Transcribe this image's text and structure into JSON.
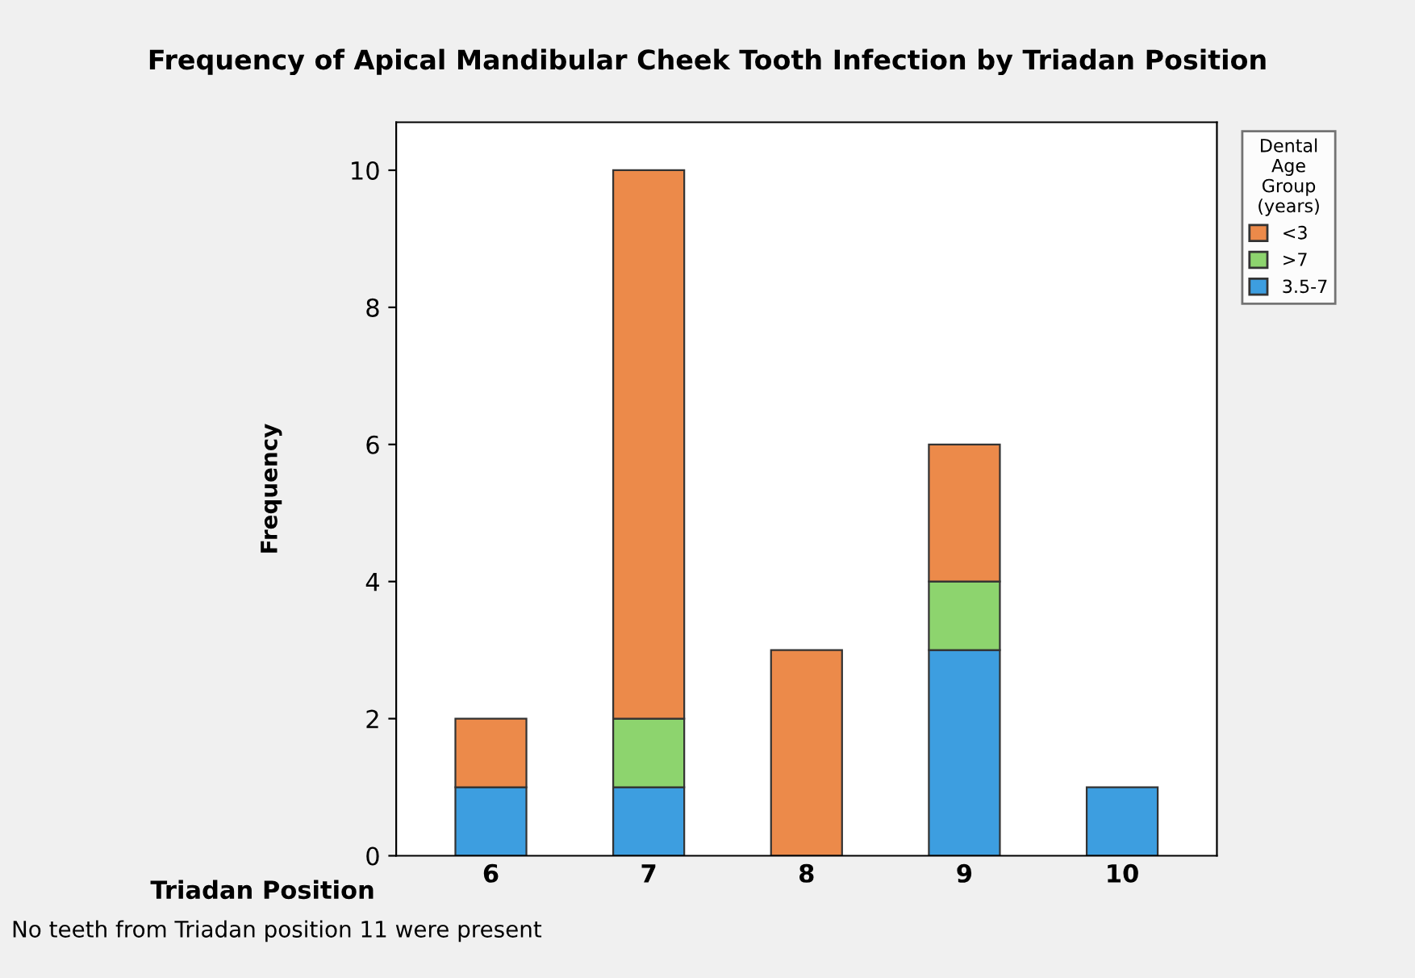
{
  "chart_data": {
    "type": "bar",
    "title": "Frequency of Apical Mandibular Cheek Tooth Infection by Triadan Position",
    "xlabel": "Triadan Position",
    "ylabel": "Frequency",
    "legend_title": "Dental\nAge\nGroup\n(years)",
    "categories": [
      "6",
      "7",
      "8",
      "9",
      "10"
    ],
    "series": [
      {
        "name": "3.5-7",
        "color": "#3d9ee0",
        "values": [
          1,
          1,
          0,
          3,
          1
        ]
      },
      {
        "name": ">7",
        "color": "#8dd46e",
        "values": [
          0,
          1,
          0,
          1,
          0
        ]
      },
      {
        "name": "<3",
        "color": "#ec8a4a",
        "values": [
          1,
          8,
          3,
          2,
          0
        ]
      }
    ],
    "stacked": true,
    "ylim": [
      0,
      10.7
    ],
    "yticks": [
      0,
      2,
      4,
      6,
      8,
      10
    ],
    "grid": false,
    "legend": "top right",
    "annotations": [
      "No teeth from Triadan position 11 were present"
    ]
  }
}
